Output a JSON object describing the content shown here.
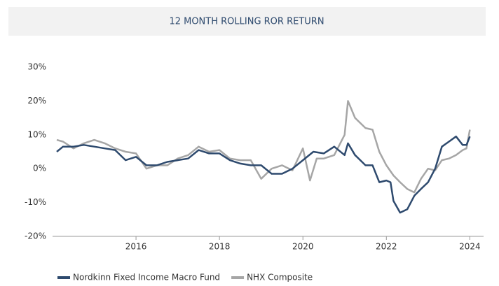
{
  "chart_data": {
    "type": "line",
    "title": "12 MONTH ROLLING ROR RETURN",
    "xlim": [
      2014,
      2024.33
    ],
    "xticks": [
      2016,
      2018,
      2020,
      2022,
      2024
    ],
    "ylim": [
      -20,
      30
    ],
    "yticks": [
      {
        "value": -20,
        "label": "-20%"
      },
      {
        "value": -10,
        "label": "-10%"
      },
      {
        "value": 0,
        "label": "0%"
      },
      {
        "value": 10,
        "label": "10%"
      },
      {
        "value": 20,
        "label": "20%"
      },
      {
        "value": 30,
        "label": "30%"
      }
    ],
    "grid": false,
    "legend": "bottom",
    "series": [
      {
        "name": "Nordkinn Fixed Income Macro Fund",
        "color": "#2e4a6e",
        "x": [
          2014.1,
          2014.25,
          2014.5,
          2014.75,
          2015.0,
          2015.25,
          2015.5,
          2015.75,
          2016.0,
          2016.25,
          2016.5,
          2016.75,
          2017.0,
          2017.25,
          2017.5,
          2017.75,
          2018.0,
          2018.25,
          2018.5,
          2018.75,
          2019.0,
          2019.25,
          2019.5,
          2019.75,
          2020.0,
          2020.25,
          2020.5,
          2020.75,
          2021.0,
          2021.08,
          2021.25,
          2021.5,
          2021.67,
          2021.83,
          2022.0,
          2022.1,
          2022.17,
          2022.33,
          2022.5,
          2022.67,
          2022.83,
          2023.0,
          2023.17,
          2023.33,
          2023.5,
          2023.67,
          2023.83,
          2023.92,
          2024.0
        ],
        "values": [
          5,
          6.5,
          6.5,
          7,
          6.5,
          6,
          5.5,
          2.5,
          3.5,
          1,
          1,
          2,
          2.5,
          3,
          5.5,
          4.5,
          4.5,
          2.5,
          1.5,
          1,
          1,
          -1.5,
          -1.5,
          0,
          2.5,
          5,
          4.5,
          6.5,
          4,
          7.5,
          4,
          1,
          1,
          -4,
          -3.5,
          -4,
          -9.5,
          -13,
          -12,
          -8,
          -6,
          -4,
          0,
          6.5,
          8,
          9.5,
          7,
          7,
          9.5
        ]
      },
      {
        "name": "NHX Composite",
        "color": "#a6a6a6",
        "x": [
          2014.1,
          2014.25,
          2014.5,
          2014.75,
          2015.0,
          2015.25,
          2015.5,
          2015.75,
          2016.0,
          2016.25,
          2016.5,
          2016.75,
          2017.0,
          2017.25,
          2017.5,
          2017.75,
          2018.0,
          2018.25,
          2018.5,
          2018.75,
          2019.0,
          2019.25,
          2019.5,
          2019.75,
          2020.0,
          2020.17,
          2020.33,
          2020.5,
          2020.75,
          2021.0,
          2021.08,
          2021.25,
          2021.5,
          2021.67,
          2021.83,
          2022.0,
          2022.17,
          2022.33,
          2022.5,
          2022.67,
          2022.83,
          2023.0,
          2023.17,
          2023.33,
          2023.5,
          2023.67,
          2023.83,
          2023.92,
          2024.0
        ],
        "values": [
          8.5,
          8,
          6,
          7.5,
          8.5,
          7.5,
          6,
          5,
          4.5,
          0,
          1,
          1,
          3,
          4,
          6.5,
          5,
          5.5,
          3,
          2.5,
          2.5,
          -3,
          0,
          1,
          -0.5,
          6,
          -3.5,
          3,
          3,
          4,
          10,
          20,
          15,
          12,
          11.5,
          5,
          1,
          -2,
          -4,
          -6,
          -7,
          -3,
          0,
          -0.5,
          2.5,
          3,
          4,
          5.5,
          6,
          11.5
        ]
      }
    ]
  }
}
